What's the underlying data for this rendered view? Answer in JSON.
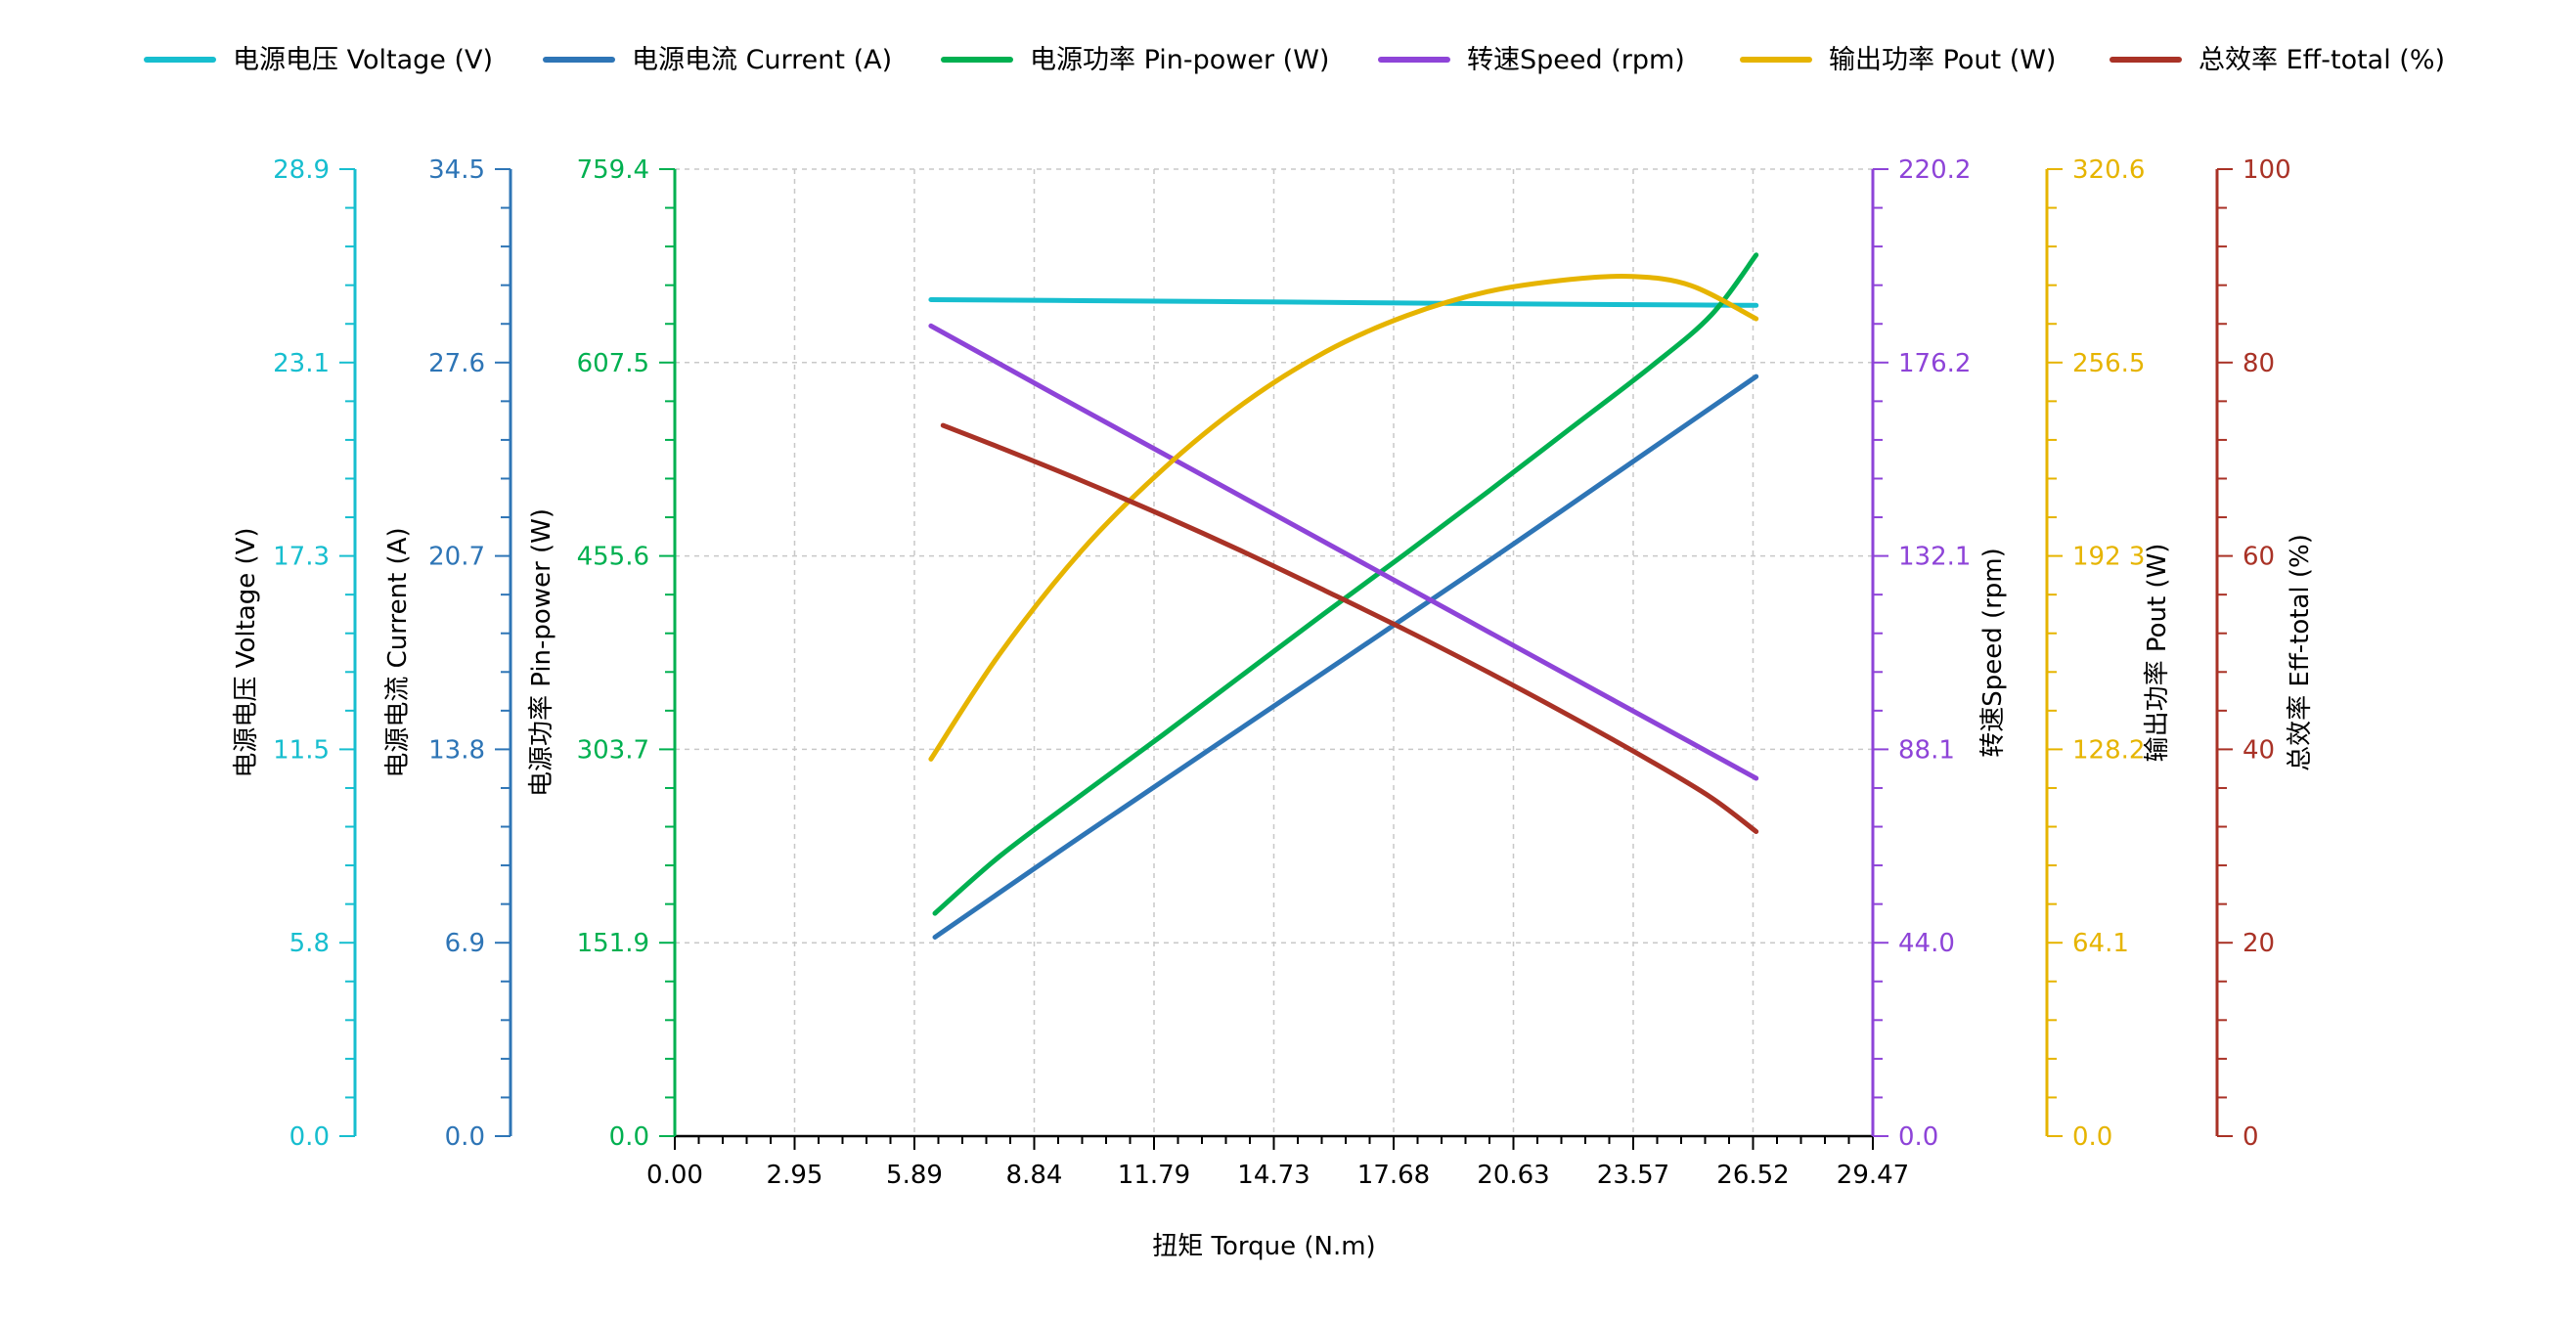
{
  "chart_data": {
    "type": "line",
    "title": "",
    "xlabel": "扭矩 Torque (N.m)",
    "xlim": [
      0,
      29.47
    ],
    "xticks": [
      "0.00",
      "2.95",
      "5.89",
      "8.84",
      "11.79",
      "14.73",
      "17.68",
      "20.63",
      "23.57",
      "26.52",
      "29.47"
    ],
    "grid": true,
    "legend_position": "top",
    "axes": [
      {
        "id": "voltage",
        "label": "电源电压 Voltage (V)",
        "side": "left",
        "color": "#17becf",
        "ylim": [
          0,
          28.9
        ],
        "ticks": [
          "0.0",
          "5.8",
          "11.5",
          "17.3",
          "23.1",
          "28.9"
        ]
      },
      {
        "id": "current",
        "label": "电源电流 Current (A)",
        "side": "left",
        "color": "#2e75b6",
        "ylim": [
          0,
          34.5
        ],
        "ticks": [
          "0.0",
          "6.9",
          "13.8",
          "20.7",
          "27.6",
          "34.5"
        ]
      },
      {
        "id": "pin",
        "label": "电源功率 Pin-power (W)",
        "side": "left",
        "color": "#00b050",
        "ylim": [
          0,
          759.4
        ],
        "ticks": [
          "0.0",
          "151.9",
          "303.7",
          "455.6",
          "607.5",
          "759.4"
        ]
      },
      {
        "id": "speed",
        "label": "转速Speed (rpm)",
        "side": "right",
        "color": "#8e44d8",
        "ylim": [
          0,
          220.2
        ],
        "ticks": [
          "0.0",
          "44.0",
          "88.1",
          "132.1",
          "176.2",
          "220.2"
        ]
      },
      {
        "id": "pout",
        "label": "输出功率 Pout (W)",
        "side": "right",
        "color": "#e6b400",
        "ylim": [
          0,
          320.6
        ],
        "ticks": [
          "0.0",
          "64.1",
          "128.2",
          "192 3",
          "256.5",
          "320.6"
        ]
      },
      {
        "id": "eff",
        "label": "总效率 Eff-total (%)",
        "side": "right",
        "color": "#a93226",
        "ylim": [
          0,
          100
        ],
        "ticks": [
          "0",
          "20",
          "40",
          "60",
          "80",
          "100"
        ]
      }
    ],
    "series": [
      {
        "name": "电源电压 Voltage (V)",
        "axis": "voltage",
        "color": "#17becf",
        "x": [
          6.3,
          10.0,
          15.0,
          20.0,
          25.0,
          26.6
        ],
        "y": [
          25.0,
          24.97,
          24.93,
          24.88,
          24.84,
          24.83
        ]
      },
      {
        "name": "电源电流 Current (A)",
        "axis": "current",
        "color": "#2e75b6",
        "x": [
          6.4,
          10.0,
          15.0,
          20.0,
          25.0,
          26.6
        ],
        "y": [
          7.1,
          10.7,
          15.6,
          20.5,
          25.5,
          27.1
        ]
      },
      {
        "name": "电源功率 Pin-power (W)",
        "axis": "pin",
        "color": "#00b050",
        "x": [
          6.4,
          8.0,
          10.0,
          12.0,
          14.0,
          16.0,
          18.0,
          20.0,
          22.0,
          24.0,
          25.5,
          26.6
        ],
        "y": [
          175,
          220,
          268,
          315,
          363,
          411,
          458,
          506,
          555,
          604,
          645,
          692
        ]
      },
      {
        "name": "转速Speed (rpm)",
        "axis": "speed",
        "color": "#8e44d8",
        "x": [
          6.3,
          10.0,
          15.0,
          20.0,
          25.0,
          26.6
        ],
        "y": [
          184.5,
          165.6,
          140.3,
          114.9,
          89.6,
          81.5
        ]
      },
      {
        "name": "输出功率 Pout (W)",
        "axis": "pout",
        "color": "#e6b400",
        "x": [
          6.3,
          8.0,
          10.0,
          12.0,
          14.0,
          16.0,
          18.0,
          20.0,
          22.0,
          23.57,
          25.0,
          26.6
        ],
        "y": [
          125,
          160,
          194,
          221,
          243,
          260,
          272,
          280,
          284,
          285,
          282,
          271
        ]
      },
      {
        "name": "总效率 Eff-total (%)",
        "axis": "eff",
        "color": "#a93226",
        "x": [
          6.6,
          8.0,
          10.0,
          12.0,
          14.0,
          16.0,
          18.0,
          20.0,
          22.0,
          24.0,
          25.5,
          26.6
        ],
        "y": [
          73.5,
          71.2,
          67.8,
          64.2,
          60.4,
          56.4,
          52.3,
          48.0,
          43.5,
          38.8,
          35.0,
          31.5
        ]
      }
    ]
  }
}
